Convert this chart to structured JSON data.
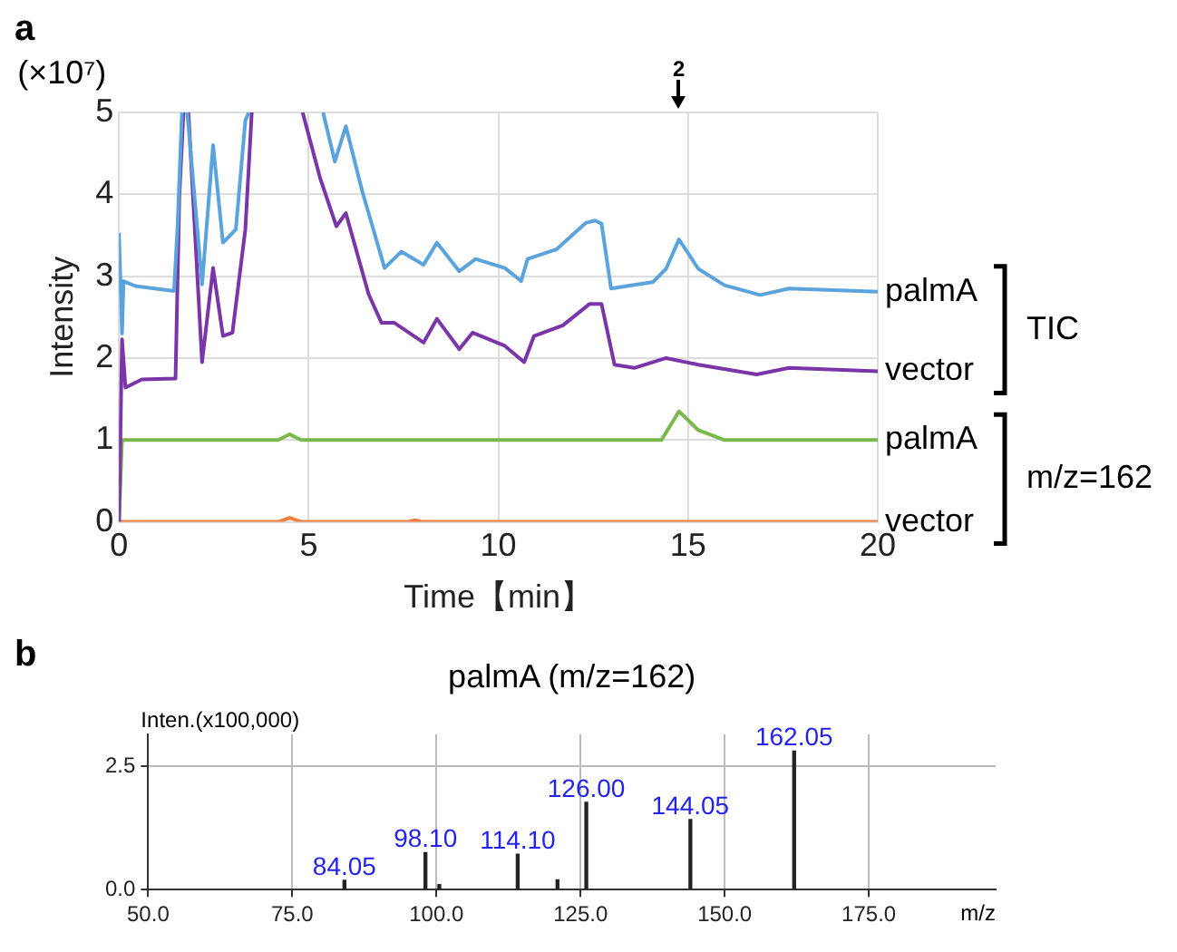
{
  "chart_data": [
    {
      "type": "line",
      "xlabel": "Time【min】",
      "ylabel": "Intensity",
      "xlim": [
        0,
        20
      ],
      "ylim": [
        0,
        5
      ],
      "xticks": [
        0,
        5,
        10,
        15,
        20
      ],
      "yticks": [
        0,
        1,
        2,
        3,
        4,
        5
      ],
      "grid": true,
      "legend": false,
      "marker": "none",
      "line_style": "solid",
      "annotations": [
        "a",
        "(×10⁷)",
        "2",
        "TIC",
        "m/z=162"
      ],
      "series": [
        {
          "name": "palmA",
          "color": "#5aa3dd",
          "x": [
            0,
            0.08,
            0.12,
            0.43,
            1.45,
            1.54,
            1.66,
            1.7,
            1.8,
            2.19,
            2.48,
            2.74,
            3.08,
            3.33,
            3.42,
            4.0,
            5.38,
            5.69,
            5.98,
            6.41,
            7.0,
            7.44,
            8.03,
            8.38,
            8.97,
            9.4,
            10.17,
            10.6,
            10.77,
            11.54,
            12.3,
            12.55,
            12.72,
            12.97,
            14.08,
            14.42,
            14.76,
            15.27,
            15.96,
            16.9,
            17.66,
            20
          ],
          "values": [
            3.53,
            2.3,
            2.94,
            2.88,
            2.82,
            3.57,
            5,
            null,
            5,
            2.9,
            4.6,
            3.41,
            3.57,
            4.9,
            5,
            null,
            5,
            4.4,
            4.83,
            4.04,
            3.1,
            3.3,
            3.14,
            3.41,
            3.06,
            3.21,
            3.1,
            2.94,
            3.21,
            3.33,
            3.65,
            3.68,
            3.64,
            2.85,
            2.93,
            3.09,
            3.45,
            3.09,
            2.89,
            2.77,
            2.85,
            2.81
          ]
        },
        {
          "name": "vector",
          "color": "#7a35a8",
          "x": [
            0,
            0.08,
            0.17,
            0.6,
            1.49,
            1.59,
            1.7,
            1.75,
            1.83,
            2.19,
            2.48,
            2.74,
            2.99,
            3.33,
            3.5,
            4.2,
            4.84,
            5.3,
            5.73,
            5.98,
            6.58,
            6.92,
            7.26,
            8.03,
            8.38,
            8.97,
            9.32,
            10.17,
            10.68,
            10.94,
            11.7,
            12.4,
            12.72,
            13.06,
            13.58,
            14.42,
            15.27,
            16.81,
            17.66,
            20
          ],
          "values": [
            0,
            2.23,
            1.64,
            1.74,
            1.75,
            3.97,
            5,
            null,
            5,
            1.95,
            3.1,
            2.27,
            2.31,
            3.57,
            5,
            null,
            5,
            4.2,
            3.61,
            3.77,
            2.78,
            2.43,
            2.43,
            2.19,
            2.48,
            2.11,
            2.31,
            2.15,
            1.95,
            2.27,
            2.4,
            2.66,
            2.66,
            1.92,
            1.88,
            2.0,
            1.92,
            1.8,
            1.88,
            1.84
          ]
        },
        {
          "name": "palmA",
          "color": "#79b84a",
          "x": [
            0,
            0.08,
            4.2,
            4.5,
            4.8,
            14.3,
            14.76,
            15.27,
            15.96,
            20
          ],
          "values": [
            0,
            1.0,
            1.0,
            1.07,
            1.0,
            1.0,
            1.35,
            1.12,
            1.0,
            1.0
          ]
        },
        {
          "name": "vector",
          "color": "#f07f3c",
          "x": [
            0,
            4.2,
            4.5,
            4.8,
            7.6,
            7.8,
            8.0,
            20
          ],
          "values": [
            0,
            0,
            0.05,
            0,
            0,
            0.02,
            0,
            0
          ]
        }
      ]
    },
    {
      "type": "bar",
      "title": "palmA (m/z=162)",
      "xlabel": "m/z",
      "ylabel": "Inten.(x100,000)",
      "xlim": [
        50,
        197
      ],
      "ylim": [
        0,
        3.15
      ],
      "xticks": [
        {
          "value": 50,
          "label": "50.0"
        },
        {
          "value": 75,
          "label": "75.0"
        },
        {
          "value": 100,
          "label": "100.0"
        },
        {
          "value": 125,
          "label": "125.0"
        },
        {
          "value": 150,
          "label": "150.0"
        },
        {
          "value": 175,
          "label": "175.0"
        }
      ],
      "yticks": [
        {
          "value": 0,
          "label": "0.0"
        },
        {
          "value": 2.5,
          "label": "2.5"
        }
      ],
      "grid": true,
      "legend": false,
      "color": "#222222",
      "x": [
        84.05,
        98.1,
        100.5,
        114.1,
        121,
        126.0,
        144.05,
        162.05
      ],
      "values": [
        0.19,
        0.75,
        0.1,
        0.72,
        0.2,
        1.77,
        1.42,
        2.81
      ],
      "annotations": [
        "b",
        {
          "text": "84.05",
          "x": 84.05,
          "y": 0.19
        },
        {
          "text": "98.10",
          "x": 98.1,
          "y": 0.75
        },
        {
          "text": "114.10",
          "x": 114.1,
          "y": 0.72
        },
        {
          "text": "126.00",
          "x": 126.0,
          "y": 1.77
        },
        {
          "text": "144.05",
          "x": 144.05,
          "y": 1.42
        },
        {
          "text": "162.05",
          "x": 162.05,
          "y": 2.81
        }
      ]
    }
  ]
}
